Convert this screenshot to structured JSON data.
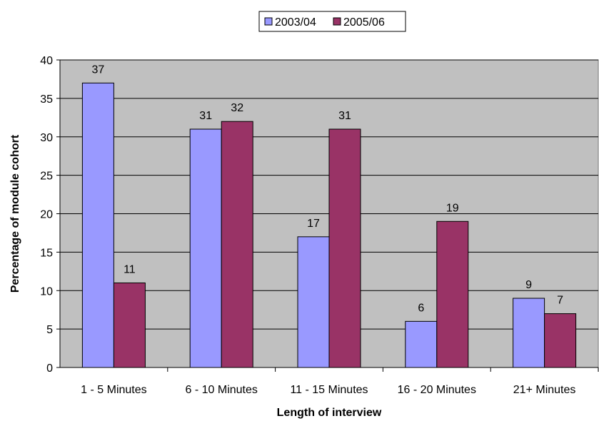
{
  "chart_data": {
    "type": "bar",
    "title": "",
    "xlabel": "Length of interview",
    "ylabel": "Percentage of module cohort",
    "categories": [
      "1 - 5 Minutes",
      "6 - 10 Minutes",
      "11 - 15 Minutes",
      "16 - 20 Minutes",
      "21+ Minutes"
    ],
    "series": [
      {
        "name": "2003/04",
        "color": "#9999ff",
        "values": [
          37,
          31,
          17,
          6,
          9
        ]
      },
      {
        "name": "2005/06",
        "color": "#993366",
        "values": [
          11,
          32,
          31,
          19,
          7
        ]
      }
    ],
    "ylim": [
      0,
      40
    ],
    "yticks": [
      0,
      5,
      10,
      15,
      20,
      25,
      30,
      35,
      40
    ],
    "grid": true,
    "plot_background": "#c0c0c0",
    "legend_position": "top"
  }
}
